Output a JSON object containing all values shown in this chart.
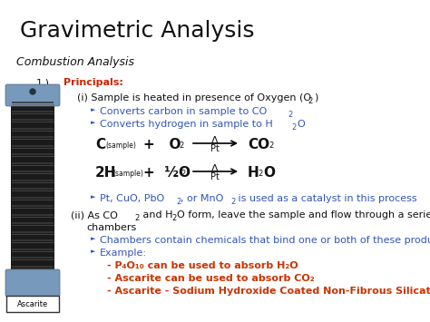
{
  "title": "Gravimetric Analysis",
  "subtitle": "Combustion Analysis",
  "background_color": "#ffffff",
  "title_color": "#000000",
  "subtitle_color": "#000000",
  "red_color": "#cc2200",
  "blue_color": "#3355bb",
  "black_color": "#111111",
  "orange_red": "#cc3300",
  "image_box_label": "Ascarite",
  "tube_cap_color": "#6688aa",
  "tube_body_color": "#1a1a1a",
  "tube_stripe_color": "#444444"
}
